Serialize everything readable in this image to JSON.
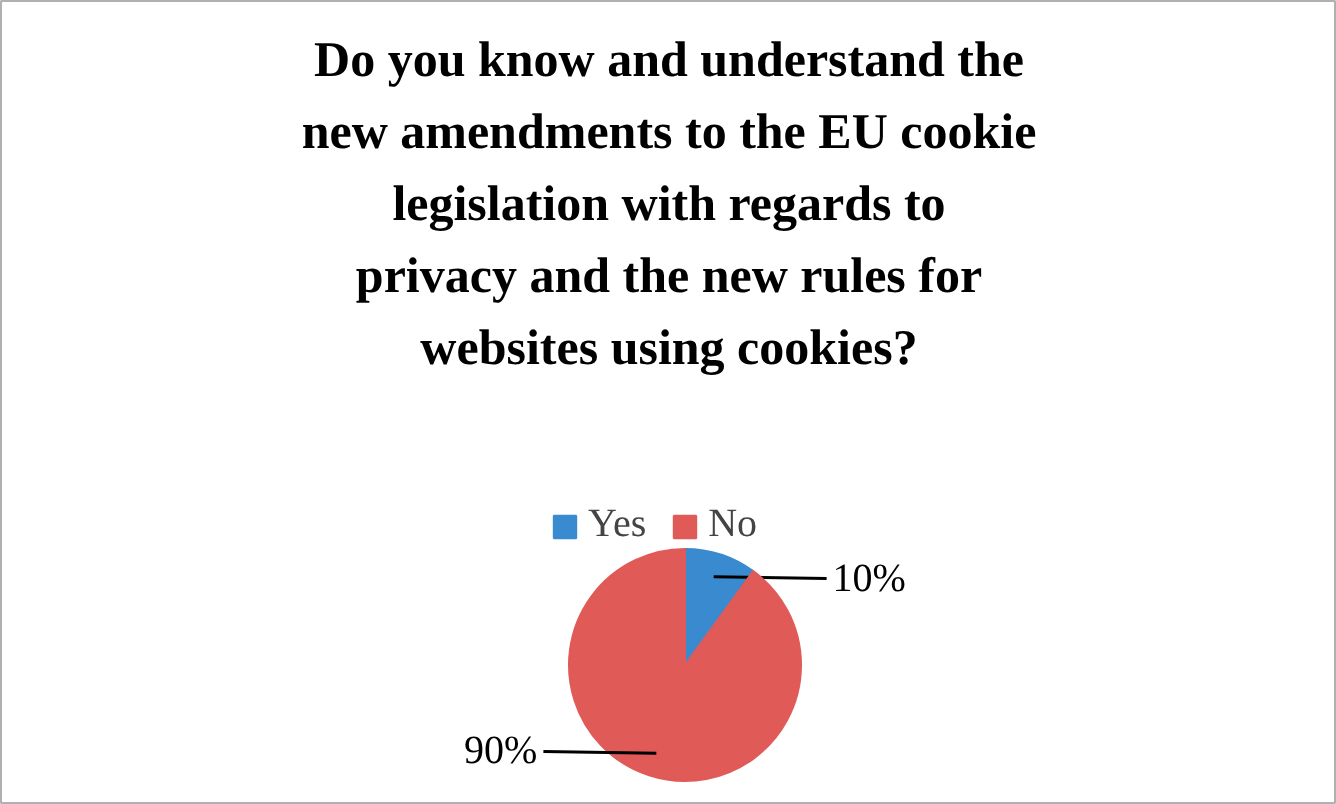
{
  "chart_data": {
    "type": "pie",
    "title": "Do you know and understand the new amendments to the EU cookie legislation with regards to privacy and the new rules for websites using cookies?",
    "categories": [
      "Yes",
      "No"
    ],
    "values": [
      10,
      90
    ],
    "colors": [
      "#3a8ad0",
      "#e05a57"
    ],
    "value_labels": [
      "10%",
      "90%"
    ],
    "legend": "top"
  }
}
